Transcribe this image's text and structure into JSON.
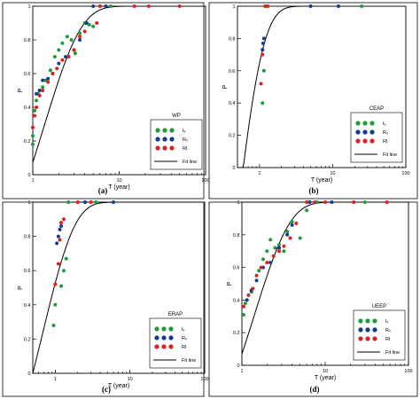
{
  "figure_caption_labels": [
    "(a)",
    "(b)",
    "(c)",
    "(d)"
  ],
  "colors": {
    "Iv": "#1f9b3a",
    "Rv": "#123b96",
    "RI": "#e02020",
    "fit": "#000000",
    "border": "#000000"
  },
  "chart_data": [
    {
      "type": "scatter",
      "caption": "(a)",
      "panel_label": "WP",
      "xlabel": "T (year)",
      "ylabel": "P",
      "xscale": "log",
      "xlim": [
        1,
        100
      ],
      "ylim": [
        0,
        1
      ],
      "xticks": [
        1,
        10,
        100
      ],
      "xtick_labels": [
        "1",
        "10",
        "100"
      ],
      "yticks": [
        0,
        0.2,
        0.4,
        0.6,
        0.8,
        1
      ],
      "ytick_labels": [
        "0",
        "0.2",
        "0.4",
        "0.6",
        "0.8",
        "1"
      ],
      "legend": {
        "position": "bottom-right",
        "entries": [
          "Iᵥ",
          "Rᵥ",
          "RI",
          "Fit line"
        ]
      },
      "fit_line": {
        "x0": 0.9,
        "k": 0.75
      },
      "series": [
        {
          "name": "Iᵥ",
          "color": "#1f9b3a",
          "points": [
            [
              1.0,
              0.18
            ],
            [
              1.0,
              0.23
            ],
            [
              1.05,
              0.38
            ],
            [
              1.1,
              0.44
            ],
            [
              1.15,
              0.48
            ],
            [
              1.2,
              0.5
            ],
            [
              1.3,
              0.52
            ],
            [
              1.4,
              0.56
            ],
            [
              1.6,
              0.62
            ],
            [
              1.8,
              0.7
            ],
            [
              2.0,
              0.74
            ],
            [
              2.2,
              0.78
            ],
            [
              2.5,
              0.82
            ],
            [
              2.8,
              0.8
            ],
            [
              3.1,
              0.72
            ],
            [
              3.5,
              0.84
            ],
            [
              4.0,
              0.9
            ],
            [
              4.5,
              0.89
            ],
            [
              5.0,
              0.88
            ],
            [
              6.0,
              1.0
            ],
            [
              8.0,
              1.0
            ]
          ]
        },
        {
          "name": "Rᵥ",
          "color": "#123b96",
          "points": [
            [
              1.1,
              0.48
            ],
            [
              1.2,
              0.5
            ],
            [
              1.3,
              0.56
            ],
            [
              1.5,
              0.57
            ],
            [
              1.7,
              0.6
            ],
            [
              2.0,
              0.66
            ],
            [
              2.4,
              0.7
            ],
            [
              3.0,
              0.74
            ],
            [
              3.5,
              0.8
            ],
            [
              4.2,
              0.9
            ],
            [
              5.0,
              1.0
            ],
            [
              7.0,
              1.0
            ]
          ]
        },
        {
          "name": "RI",
          "color": "#e02020",
          "points": [
            [
              1.0,
              0.28
            ],
            [
              1.05,
              0.35
            ],
            [
              1.1,
              0.4
            ],
            [
              1.2,
              0.47
            ],
            [
              1.3,
              0.5
            ],
            [
              1.5,
              0.55
            ],
            [
              1.7,
              0.6
            ],
            [
              1.9,
              0.63
            ],
            [
              2.2,
              0.68
            ],
            [
              2.6,
              0.7
            ],
            [
              3.0,
              0.74
            ],
            [
              3.5,
              0.82
            ],
            [
              4.0,
              0.85
            ],
            [
              5.5,
              0.9
            ],
            [
              6.0,
              1.0
            ],
            [
              15.0,
              1.0
            ],
            [
              22.0,
              1.0
            ],
            [
              50.0,
              1.0
            ]
          ]
        }
      ]
    },
    {
      "type": "scatter",
      "caption": "(b)",
      "panel_label": "CEAP",
      "xlabel": "T (year)",
      "ylabel": "P",
      "xscale": "log",
      "xlim": [
        0.5,
        100
      ],
      "ylim": [
        0,
        1
      ],
      "xticks": [
        1,
        10,
        100
      ],
      "xtick_labels": [
        "1",
        "10",
        "100"
      ],
      "yticks": [
        0,
        0.2,
        0.4,
        0.6,
        0.8,
        1
      ],
      "ytick_labels": [
        "0",
        "0.2",
        "0.4",
        "0.6",
        "0.8",
        "1"
      ],
      "legend": {
        "position": "bottom-right",
        "entries": [
          "Iᵥ",
          "Rᵥ",
          "RI",
          "Fit line"
        ]
      },
      "fit_line": {
        "x0": 0.6,
        "k": 2.6
      },
      "series": [
        {
          "name": "Iᵥ",
          "color": "#1f9b3a",
          "points": [
            [
              1.1,
              0.4
            ],
            [
              1.15,
              0.6
            ],
            [
              1.2,
              1.0
            ],
            [
              25.0,
              1.0
            ]
          ]
        },
        {
          "name": "Rᵥ",
          "color": "#123b96",
          "points": [
            [
              1.1,
              0.73
            ],
            [
              1.12,
              0.77
            ],
            [
              1.15,
              0.8
            ],
            [
              5.0,
              1.0
            ],
            [
              12.0,
              1.0
            ]
          ]
        },
        {
          "name": "RI",
          "color": "#e02020",
          "points": [
            [
              1.05,
              0.52
            ],
            [
              1.1,
              0.7
            ],
            [
              1.2,
              1.0
            ],
            [
              1.3,
              1.0
            ]
          ]
        }
      ]
    },
    {
      "type": "scatter",
      "caption": "(c)",
      "panel_label": "ERAP",
      "xlabel": "T (year)",
      "ylabel": "P",
      "xscale": "log",
      "xlim": [
        0.5,
        100
      ],
      "ylim": [
        0,
        1
      ],
      "xticks": [
        1,
        10,
        100
      ],
      "xtick_labels": [
        "1",
        "10",
        "100"
      ],
      "yticks": [
        0,
        0.2,
        0.4,
        0.6,
        0.8,
        1
      ],
      "ytick_labels": [
        "0",
        "0.2",
        "0.4",
        "0.6",
        "0.8",
        "1"
      ],
      "legend": {
        "position": "bottom-right",
        "entries": [
          "Iᵥ",
          "Rᵥ",
          "RI",
          "Fit line"
        ]
      },
      "fit_line": {
        "x0": 0.5,
        "k": 1.5
      },
      "series": [
        {
          "name": "Iᵥ",
          "color": "#1f9b3a",
          "points": [
            [
              0.95,
              0.28
            ],
            [
              1.0,
              0.4
            ],
            [
              1.2,
              0.51
            ],
            [
              1.3,
              0.6
            ],
            [
              1.4,
              0.67
            ],
            [
              1.5,
              1.0
            ],
            [
              3.5,
              1.0
            ]
          ]
        },
        {
          "name": "Rᵥ",
          "color": "#123b96",
          "points": [
            [
              1.05,
              0.76
            ],
            [
              1.1,
              0.8
            ],
            [
              1.15,
              0.84
            ],
            [
              1.2,
              0.86
            ],
            [
              2.5,
              1.0
            ],
            [
              6.0,
              1.0
            ]
          ]
        },
        {
          "name": "RI",
          "color": "#e02020",
          "points": [
            [
              1.0,
              0.52
            ],
            [
              1.1,
              0.64
            ],
            [
              1.15,
              0.78
            ],
            [
              1.2,
              0.88
            ],
            [
              1.3,
              0.9
            ],
            [
              2.0,
              1.0
            ],
            [
              3.0,
              1.0
            ]
          ]
        }
      ]
    },
    {
      "type": "scatter",
      "caption": "(d)",
      "panel_label": "UEEP",
      "xlabel": "T (year)",
      "ylabel": "P",
      "xscale": "log",
      "xlim": [
        1,
        100
      ],
      "ylim": [
        0,
        1
      ],
      "xticks": [
        1,
        10,
        100
      ],
      "xtick_labels": [
        "1",
        "10",
        "100"
      ],
      "yticks": [
        0,
        0.2,
        0.4,
        0.6,
        0.8,
        1
      ],
      "ytick_labels": [
        "0",
        "0.2",
        "0.4",
        "0.6",
        "0.8",
        "1"
      ],
      "legend": {
        "position": "bottom-right",
        "entries": [
          "Iᵥ",
          "Rᵥ",
          "RI",
          "Fit line"
        ]
      },
      "fit_line": {
        "x0": 0.9,
        "k": 0.72
      },
      "series": [
        {
          "name": "Iᵥ",
          "color": "#1f9b3a",
          "points": [
            [
              1.05,
              0.31
            ],
            [
              1.1,
              0.38
            ],
            [
              1.3,
              0.45
            ],
            [
              1.6,
              0.58
            ],
            [
              1.8,
              0.65
            ],
            [
              2.0,
              0.7
            ],
            [
              2.2,
              0.77
            ],
            [
              2.5,
              0.72
            ],
            [
              2.8,
              0.74
            ],
            [
              3.2,
              0.7
            ],
            [
              3.5,
              0.82
            ],
            [
              4.0,
              0.88
            ],
            [
              5.0,
              0.78
            ],
            [
              6.0,
              0.95
            ],
            [
              8.0,
              1.0
            ],
            [
              30.0,
              1.0
            ]
          ]
        },
        {
          "name": "Rᵥ",
          "color": "#123b96",
          "points": [
            [
              1.15,
              0.4
            ],
            [
              1.3,
              0.46
            ],
            [
              1.5,
              0.52
            ],
            [
              1.8,
              0.6
            ],
            [
              2.2,
              0.63
            ],
            [
              2.8,
              0.72
            ],
            [
              3.5,
              0.8
            ],
            [
              4.0,
              0.86
            ],
            [
              6.5,
              1.0
            ],
            [
              12.0,
              1.0
            ]
          ]
        },
        {
          "name": "RI",
          "color": "#e02020",
          "points": [
            [
              1.05,
              0.36
            ],
            [
              1.2,
              0.43
            ],
            [
              1.35,
              0.47
            ],
            [
              1.5,
              0.55
            ],
            [
              1.7,
              0.6
            ],
            [
              2.0,
              0.63
            ],
            [
              2.4,
              0.67
            ],
            [
              2.8,
              0.7
            ],
            [
              3.2,
              0.73
            ],
            [
              3.8,
              0.78
            ],
            [
              4.5,
              0.87
            ],
            [
              6.0,
              1.0
            ],
            [
              7.5,
              1.0
            ],
            [
              10.0,
              1.0
            ],
            [
              22.0,
              1.0
            ],
            [
              55.0,
              1.0
            ]
          ]
        }
      ]
    }
  ]
}
